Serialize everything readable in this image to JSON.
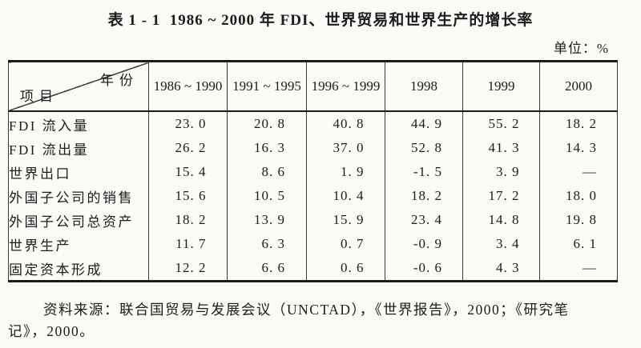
{
  "page": {
    "title": "表 1 - 1  1986 ~ 2000 年 FDI、世界贸易和世界生产的增长率",
    "unit_label": "单位：%"
  },
  "table": {
    "corner": {
      "top_right": "年份",
      "bottom_left": "项目"
    },
    "columns": [
      "1986 ~ 1990",
      "1991 ~ 1995",
      "1996 ~ 1999",
      "1998",
      "1999",
      "2000"
    ],
    "rows": [
      {
        "label": "FDI 流入量",
        "values": [
          "23. 0",
          "20. 8",
          "40. 8",
          "44. 9",
          "55. 2",
          "18. 2"
        ]
      },
      {
        "label": "FDI 流出量",
        "values": [
          "26. 2",
          "16. 3",
          "37. 0",
          "52. 8",
          "41. 3",
          "14. 3"
        ]
      },
      {
        "label": "世界出口",
        "values": [
          "15. 4",
          "8. 6",
          "1. 9",
          "-1. 5",
          "3. 9",
          "—"
        ]
      },
      {
        "label": "外国子公司的销售",
        "values": [
          "15. 6",
          "10. 5",
          "10. 4",
          "18. 2",
          "17. 2",
          "18. 0"
        ]
      },
      {
        "label": "外国子公司总资产",
        "values": [
          "18. 2",
          "13. 9",
          "15. 9",
          "23. 4",
          "14. 8",
          "19. 8"
        ]
      },
      {
        "label": "世界生产",
        "values": [
          "11. 7",
          "6. 3",
          "0. 7",
          "-0. 9",
          "3. 4",
          "6. 1"
        ]
      },
      {
        "label": "固定资本形成",
        "values": [
          "12. 2",
          "6. 6",
          "0. 6",
          "-0. 6",
          "4. 3",
          "—"
        ]
      }
    ]
  },
  "footer": {
    "lines": [
      "资料来源：联合国贸易与发展会议（UNCTAD），《世界报告》，2000；《研究笔",
      "记》，2000。"
    ]
  }
}
